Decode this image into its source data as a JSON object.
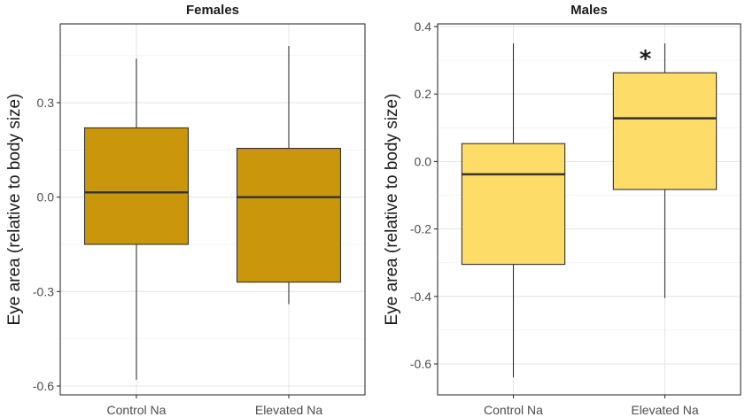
{
  "chart_data": [
    {
      "type": "box",
      "title": "Females",
      "xlabel": "",
      "ylabel": "Eye area (relative to body size)",
      "categories": [
        "Control Na",
        "Elevated Na"
      ],
      "ylim": [
        -0.62,
        0.42
      ],
      "yticks": [
        0.3,
        0.0,
        -0.3,
        -0.6
      ],
      "ytick_labels": [
        "0.3",
        "0.0",
        "-0.3",
        "-0.6"
      ],
      "fill_color": "#c9960c",
      "grid": true,
      "boxes": [
        {
          "category": "Control Na",
          "whisker_low": -0.58,
          "q1": -0.15,
          "median": 0.015,
          "q3": 0.22,
          "whisker_high": 0.44
        },
        {
          "category": "Elevated Na",
          "whisker_low": -0.34,
          "q1": -0.27,
          "median": 0.0,
          "q3": 0.155,
          "whisker_high": 0.48
        }
      ],
      "annotations": []
    },
    {
      "type": "box",
      "title": "Males",
      "xlabel": "",
      "ylabel": "Eye area (relative to body size)",
      "categories": [
        "Control Na",
        "Elevated Na"
      ],
      "ylim": [
        -0.68,
        0.4
      ],
      "yticks": [
        0.4,
        0.2,
        0.0,
        -0.2,
        -0.4,
        -0.6
      ],
      "ytick_labels": [
        "0.4",
        "0.2",
        "0.0",
        "-0.2",
        "-0.4",
        "-0.6"
      ],
      "fill_color": "#fddc68",
      "grid": true,
      "boxes": [
        {
          "category": "Control Na",
          "whisker_low": -0.64,
          "q1": -0.305,
          "median": -0.038,
          "q3": 0.053,
          "whisker_high": 0.35
        },
        {
          "category": "Elevated Na",
          "whisker_low": -0.405,
          "q1": -0.083,
          "median": 0.128,
          "q3": 0.263,
          "whisker_high": 0.35
        }
      ],
      "annotations": [
        {
          "text": "*",
          "category": "Elevated Na"
        }
      ]
    }
  ]
}
